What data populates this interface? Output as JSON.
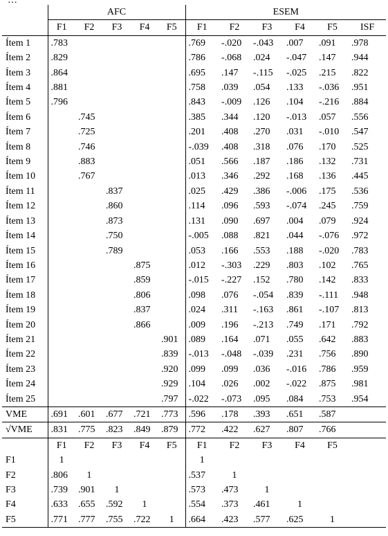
{
  "caption_fragment": "…",
  "groups": {
    "afc": "AFC",
    "esem": "ESEM"
  },
  "headers": {
    "afc": [
      "F1",
      "F2",
      "F3",
      "F4",
      "F5"
    ],
    "esem": [
      "F1",
      "F2",
      "F3",
      "F4",
      "F5",
      "ISF"
    ]
  },
  "items": [
    {
      "label": "Ítem 1",
      "afc": [
        ".783",
        "",
        "",
        "",
        ""
      ],
      "esem": [
        ".769",
        "-.020",
        "-.043",
        ".007",
        ".091",
        ".978"
      ]
    },
    {
      "label": "Ítem 2",
      "afc": [
        ".829",
        "",
        "",
        "",
        ""
      ],
      "esem": [
        ".786",
        "-.068",
        ".024",
        "-.047",
        ".147",
        ".944"
      ]
    },
    {
      "label": "Ítem 3",
      "afc": [
        ".864",
        "",
        "",
        "",
        ""
      ],
      "esem": [
        ".695",
        ".147",
        "-.115",
        "-.025",
        ".215",
        ".822"
      ]
    },
    {
      "label": "Ítem 4",
      "afc": [
        ".881",
        "",
        "",
        "",
        ""
      ],
      "esem": [
        ".758",
        ".039",
        ".054",
        ".133",
        "-.036",
        ".951"
      ]
    },
    {
      "label": "Ítem 5",
      "afc": [
        ".796",
        "",
        "",
        "",
        ""
      ],
      "esem": [
        ".843",
        "-.009",
        ".126",
        ".104",
        "-.216",
        ".884"
      ]
    },
    {
      "label": "Ítem 6",
      "afc": [
        "",
        ".745",
        "",
        "",
        ""
      ],
      "esem": [
        ".385",
        ".344",
        ".120",
        "-.013",
        ".057",
        ".556"
      ]
    },
    {
      "label": "Ítem 7",
      "afc": [
        "",
        ".725",
        "",
        "",
        ""
      ],
      "esem": [
        ".201",
        ".408",
        ".270",
        ".031",
        "-.010",
        ".547"
      ]
    },
    {
      "label": "Ítem 8",
      "afc": [
        "",
        ".746",
        "",
        "",
        ""
      ],
      "esem": [
        "-.039",
        ".408",
        ".318",
        ".076",
        ".170",
        ".525"
      ]
    },
    {
      "label": "Ítem 9",
      "afc": [
        "",
        ".883",
        "",
        "",
        ""
      ],
      "esem": [
        ".051",
        ".566",
        ".187",
        ".186",
        ".132",
        ".731"
      ]
    },
    {
      "label": "Ítem 10",
      "afc": [
        "",
        ".767",
        "",
        "",
        ""
      ],
      "esem": [
        ".013",
        ".346",
        ".292",
        ".168",
        ".136",
        ".445"
      ]
    },
    {
      "label": "Ítem 11",
      "afc": [
        "",
        "",
        ".837",
        "",
        ""
      ],
      "esem": [
        ".025",
        ".429",
        ".386",
        "-.006",
        ".175",
        ".536"
      ]
    },
    {
      "label": "Ítem 12",
      "afc": [
        "",
        "",
        ".860",
        "",
        ""
      ],
      "esem": [
        ".114",
        ".096",
        ".593",
        "-.074",
        ".245",
        ".759"
      ]
    },
    {
      "label": "Ítem 13",
      "afc": [
        "",
        "",
        ".873",
        "",
        ""
      ],
      "esem": [
        ".131",
        ".090",
        ".697",
        ".004",
        ".079",
        ".924"
      ]
    },
    {
      "label": "Ítem 14",
      "afc": [
        "",
        "",
        ".750",
        "",
        ""
      ],
      "esem": [
        "-.005",
        ".088",
        ".821",
        ".044",
        "-.076",
        ".972"
      ]
    },
    {
      "label": "Ítem 15",
      "afc": [
        "",
        "",
        ".789",
        "",
        ""
      ],
      "esem": [
        ".053",
        ".166",
        ".553",
        ".188",
        "-.020",
        ".783"
      ]
    },
    {
      "label": "Ítem 16",
      "afc": [
        "",
        "",
        "",
        ".875",
        ""
      ],
      "esem": [
        ".012",
        "-.303",
        ".229",
        ".803",
        ".102",
        ".765"
      ]
    },
    {
      "label": "Ítem 17",
      "afc": [
        "",
        "",
        "",
        ".859",
        ""
      ],
      "esem": [
        "-.015",
        "-.227",
        ".152",
        ".780",
        ".142",
        ".833"
      ]
    },
    {
      "label": "Ítem 18",
      "afc": [
        "",
        "",
        "",
        ".806",
        ""
      ],
      "esem": [
        ".098",
        ".076",
        "-.054",
        ".839",
        "-.111",
        ".948"
      ]
    },
    {
      "label": "Ítem 19",
      "afc": [
        "",
        "",
        "",
        ".837",
        ""
      ],
      "esem": [
        ".024",
        ".311",
        "-.163",
        ".861",
        "-.107",
        ".813"
      ]
    },
    {
      "label": "Ítem 20",
      "afc": [
        "",
        "",
        "",
        ".866",
        ""
      ],
      "esem": [
        ".009",
        ".196",
        "-.213",
        ".749",
        ".171",
        ".792"
      ]
    },
    {
      "label": "Ítem 21",
      "afc": [
        "",
        "",
        "",
        "",
        ".901"
      ],
      "esem": [
        ".089",
        ".164",
        ".071",
        ".055",
        ".642",
        ".883"
      ]
    },
    {
      "label": "Ítem 22",
      "afc": [
        "",
        "",
        "",
        "",
        ".839"
      ],
      "esem": [
        "-.013",
        "-.048",
        "-.039",
        ".231",
        ".756",
        ".890"
      ]
    },
    {
      "label": "Ítem 23",
      "afc": [
        "",
        "",
        "",
        "",
        ".920"
      ],
      "esem": [
        ".099",
        ".099",
        ".036",
        "-.016",
        ".786",
        ".959"
      ]
    },
    {
      "label": "Ítem 24",
      "afc": [
        "",
        "",
        "",
        "",
        ".929"
      ],
      "esem": [
        ".104",
        ".026",
        ".002",
        "-.022",
        ".875",
        ".981"
      ]
    },
    {
      "label": "Ítem 25",
      "afc": [
        "",
        "",
        "",
        "",
        ".797"
      ],
      "esem": [
        "-.022",
        "-.073",
        ".095",
        ".084",
        ".753",
        ".954"
      ]
    }
  ],
  "summary": [
    {
      "label": "VME",
      "afc": [
        ".691",
        ".601",
        ".677",
        ".721",
        ".773"
      ],
      "esem": [
        ".596",
        ".178",
        ".393",
        ".651",
        ".587",
        ""
      ]
    },
    {
      "label": "√VME",
      "afc": [
        ".831",
        ".775",
        ".823",
        ".849",
        ".879"
      ],
      "esem": [
        ".772",
        ".422",
        ".627",
        ".807",
        ".766",
        ""
      ]
    }
  ],
  "corr_headers": {
    "afc": [
      "F1",
      "F2",
      "F3",
      "F4",
      "F5"
    ],
    "esem": [
      "F1",
      "F2",
      "F3",
      "F4",
      "F5",
      ""
    ]
  },
  "correlations": [
    {
      "label": "F1",
      "afc": [
        "1",
        "",
        "",
        "",
        ""
      ],
      "esem": [
        "1",
        "",
        "",
        "",
        "",
        ""
      ]
    },
    {
      "label": "F2",
      "afc": [
        ".806",
        "1",
        "",
        "",
        ""
      ],
      "esem": [
        ".537",
        "1",
        "",
        "",
        "",
        ""
      ]
    },
    {
      "label": "F3",
      "afc": [
        ".739",
        ".901",
        "1",
        "",
        ""
      ],
      "esem": [
        ".573",
        ".473",
        "1",
        "",
        "",
        ""
      ]
    },
    {
      "label": "F4",
      "afc": [
        ".633",
        ".655",
        ".592",
        "1",
        ""
      ],
      "esem": [
        ".554",
        ".373",
        ".461",
        "1",
        "",
        ""
      ]
    },
    {
      "label": "F5",
      "afc": [
        ".771",
        ".777",
        ".755",
        ".722",
        "1"
      ],
      "esem": [
        ".664",
        ".423",
        ".577",
        ".625",
        "1",
        ""
      ]
    }
  ]
}
